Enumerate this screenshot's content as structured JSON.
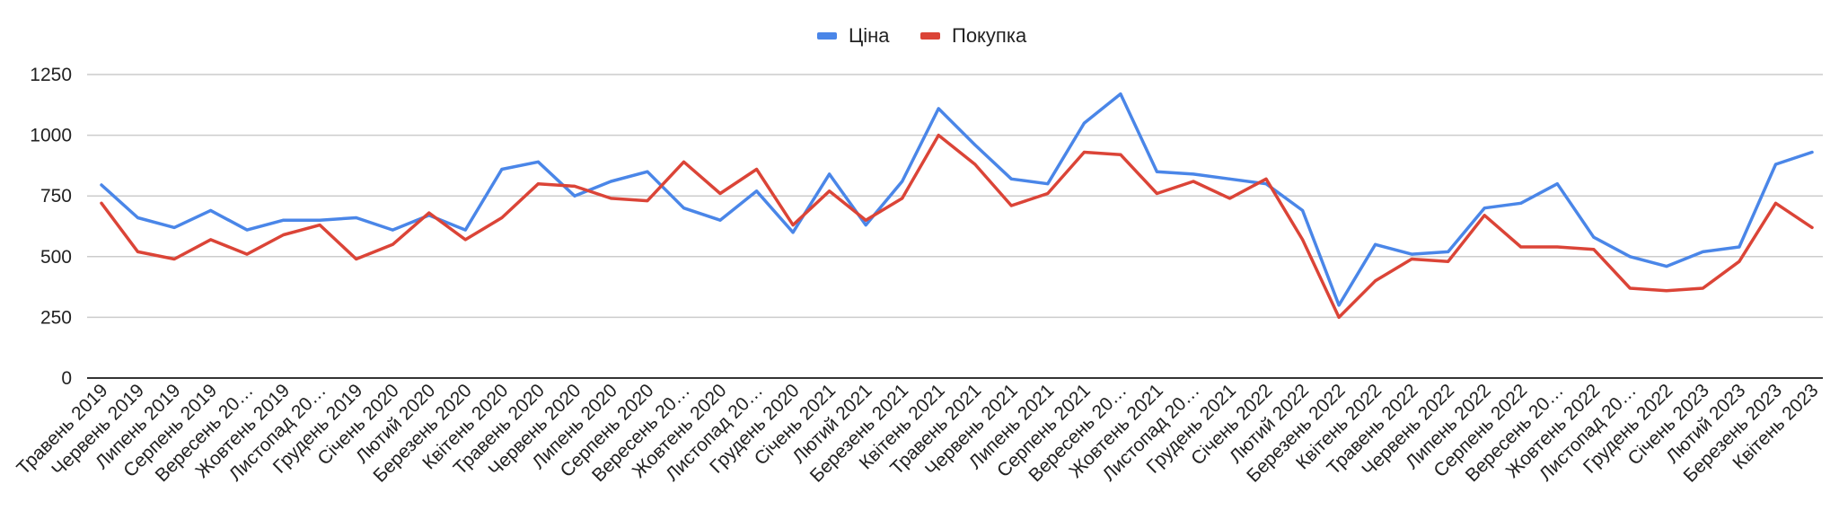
{
  "chart_data": {
    "type": "line",
    "title": "",
    "xlabel": "",
    "ylabel": "",
    "ylim": [
      0,
      1250
    ],
    "yticks": [
      0,
      250,
      500,
      750,
      1000,
      1250
    ],
    "grid": true,
    "legend_position": "top-center",
    "categories": [
      "Травень 2019",
      "Червень 2019",
      "Липень 2019",
      "Серпень 2019",
      "Вересень 20…",
      "Жовтень 2019",
      "Листопад 20…",
      "Грудень 2019",
      "Січень 2020",
      "Лютий 2020",
      "Березень 2020",
      "Квітень 2020",
      "Травень 2020",
      "Червень 2020",
      "Липень 2020",
      "Серпень 2020",
      "Вересень 20…",
      "Жовтень 2020",
      "Листопад 20…",
      "Грудень 2020",
      "Січень 2021",
      "Лютий 2021",
      "Березень 2021",
      "Квітень 2021",
      "Травень 2021",
      "Червень 2021",
      "Липень 2021",
      "Серпень 2021",
      "Вересень 20…",
      "Жовтень 2021",
      "Листопад 20…",
      "Грудень 2021",
      "Січень 2022",
      "Лютий 2022",
      "Березень 2022",
      "Квітень 2022",
      "Травень 2022",
      "Червень 2022",
      "Липень 2022",
      "Серпень 2022",
      "Вересень 20…",
      "Жовтень 2022",
      "Листопад 20…",
      "Грудень 2022",
      "Січень 2023",
      "Лютий 2023",
      "Березень 2023",
      "Квітень 2023"
    ],
    "series": [
      {
        "name": "Ціна",
        "color": "#4a86e8",
        "values": [
          795,
          660,
          620,
          690,
          610,
          650,
          650,
          660,
          610,
          670,
          610,
          860,
          890,
          750,
          810,
          850,
          700,
          650,
          770,
          600,
          840,
          630,
          810,
          1110,
          960,
          820,
          800,
          1050,
          1170,
          850,
          840,
          820,
          800,
          690,
          300,
          550,
          510,
          520,
          700,
          720,
          800,
          580,
          500,
          460,
          520,
          540,
          880,
          930
        ]
      },
      {
        "name": "Покупка",
        "color": "#db4437",
        "values": [
          720,
          520,
          490,
          570,
          510,
          590,
          630,
          490,
          550,
          680,
          570,
          660,
          800,
          790,
          740,
          730,
          890,
          760,
          860,
          630,
          770,
          650,
          740,
          1000,
          880,
          710,
          760,
          930,
          920,
          760,
          810,
          740,
          820,
          570,
          250,
          400,
          490,
          480,
          670,
          540,
          540,
          530,
          370,
          360,
          370,
          480,
          720,
          620
        ]
      }
    ]
  }
}
